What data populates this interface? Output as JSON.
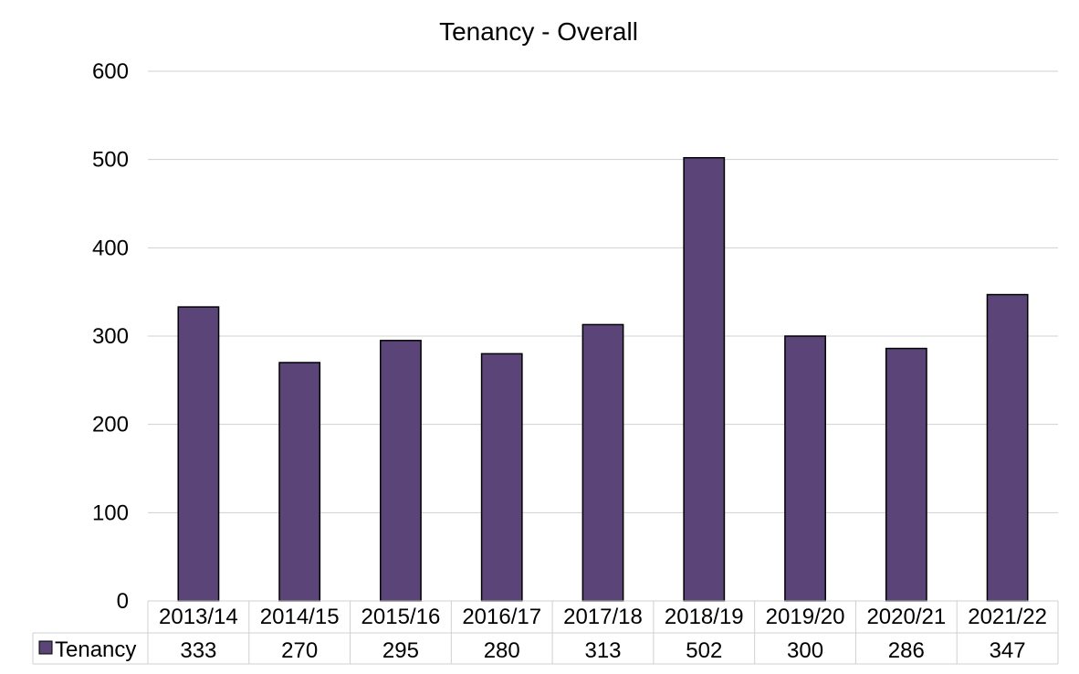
{
  "chart_data": {
    "type": "bar",
    "title": "Tenancy - Overall",
    "categories": [
      "2013/14",
      "2014/15",
      "2015/16",
      "2016/17",
      "2017/18",
      "2018/19",
      "2019/20",
      "2020/21",
      "2021/22"
    ],
    "series": [
      {
        "name": "Tenancy",
        "values": [
          333,
          270,
          295,
          280,
          313,
          502,
          300,
          286,
          347
        ],
        "color": "#5b4478"
      }
    ],
    "ylim": [
      0,
      600
    ],
    "yticks": [
      0,
      100,
      200,
      300,
      400,
      500,
      600
    ],
    "grid": true,
    "legend": "data-table"
  }
}
